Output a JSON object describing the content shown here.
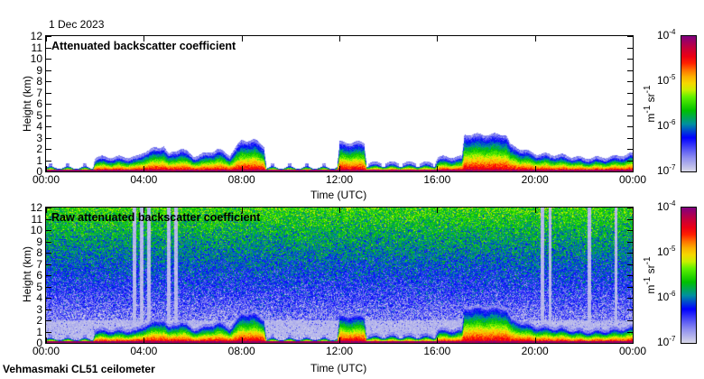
{
  "date": "1 Dec 2023",
  "footer": "Vehmasmaki CL51 ceilometer",
  "chart_data": [
    {
      "type": "heatmap",
      "title": "Attenuated backscatter coefficient",
      "xlabel": "Time (UTC)",
      "ylabel": "Height (km)",
      "xticks": [
        "00:00",
        "04:00",
        "08:00",
        "12:00",
        "16:00",
        "20:00",
        "00:00"
      ],
      "yticks": [
        "0",
        "1",
        "2",
        "3",
        "4",
        "5",
        "6",
        "7",
        "8",
        "9",
        "10",
        "11",
        "12"
      ],
      "ylim": [
        0,
        12
      ],
      "xlim_hours": [
        0,
        24
      ],
      "colorbar": {
        "label": "m-1 sr-1",
        "scale": "log",
        "ticks": [
          "10-7",
          "10-6",
          "10-5",
          "10-4"
        ],
        "range_log10": [
          -7,
          -4
        ]
      },
      "signal_top_km": {
        "hours": [
          0,
          1.9,
          2,
          3.7,
          4,
          4.5,
          4.8,
          5,
          5.5,
          6,
          6.5,
          7,
          7.5,
          8,
          8.5,
          8.9,
          9,
          11.9,
          12,
          13,
          13.1,
          15.9,
          16,
          17,
          17.1,
          18.8,
          19,
          20,
          21,
          22,
          23,
          24
        ],
        "heights": [
          0.3,
          0.3,
          1.0,
          1.0,
          1.5,
          1.8,
          2.0,
          1.2,
          1.8,
          1.1,
          1.3,
          1.7,
          1.2,
          2.5,
          2.5,
          2.0,
          0.3,
          0.3,
          2.3,
          2.3,
          0.5,
          0.5,
          1.0,
          1.0,
          3.0,
          3.0,
          2.0,
          1.3,
          1.2,
          0.9,
          1.0,
          1.3
        ]
      }
    },
    {
      "type": "heatmap",
      "title": "Raw attenuated backscatter coefficient",
      "xlabel": "Time (UTC)",
      "ylabel": "Height (km)",
      "xticks": [
        "00:00",
        "04:00",
        "08:00",
        "12:00",
        "16:00",
        "20:00",
        "00:00"
      ],
      "yticks": [
        "0",
        "1",
        "2",
        "3",
        "4",
        "5",
        "6",
        "7",
        "8",
        "9",
        "10",
        "11",
        "12"
      ],
      "ylim": [
        0,
        12
      ],
      "colorbar": {
        "label": "m-1 sr-1",
        "scale": "log",
        "ticks": [
          "10-7",
          "10-6",
          "10-5",
          "10-4"
        ],
        "range_log10": [
          -7,
          -4
        ]
      },
      "noise_streak_hours": [
        3.6,
        3.9,
        4.2,
        5.0,
        5.3,
        20.3,
        20.6,
        22.2,
        23.3
      ]
    }
  ]
}
